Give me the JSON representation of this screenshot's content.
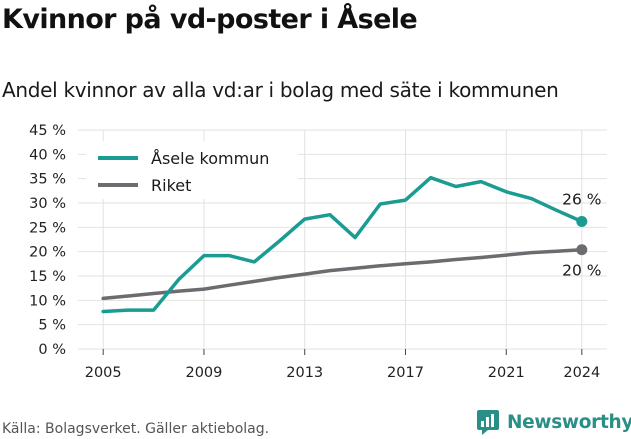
{
  "title": "Kvinnor på vd-poster i Åsele",
  "subtitle": "Andel kvinnor av alla vd:ar i bolag med säte i kommunen",
  "source": "Källa: Bolagsverket. Gäller aktiebolag.",
  "brand": {
    "name": "Newsworthy",
    "color": "#2a8f86"
  },
  "chart_data": {
    "type": "line",
    "x": [
      2005,
      2006,
      2007,
      2008,
      2009,
      2010,
      2011,
      2012,
      2013,
      2014,
      2015,
      2016,
      2017,
      2018,
      2019,
      2020,
      2021,
      2022,
      2023,
      2024
    ],
    "series": [
      {
        "name": "Åsele kommun",
        "color": "#1a9c93",
        "values": [
          7.7,
          8.0,
          8.0,
          14.3,
          19.2,
          19.2,
          17.9,
          22.2,
          26.7,
          27.6,
          22.9,
          29.8,
          30.6,
          35.2,
          33.4,
          34.4,
          32.3,
          30.9,
          28.5,
          26.2
        ],
        "end_label": "26 %"
      },
      {
        "name": "Riket",
        "color": "#6e6b70",
        "values": [
          10.4,
          10.9,
          11.4,
          11.9,
          12.3,
          13.1,
          13.9,
          14.7,
          15.4,
          16.1,
          16.6,
          17.1,
          17.5,
          17.9,
          18.4,
          18.8,
          19.3,
          19.8,
          20.1,
          20.4
        ],
        "end_label": "20 %"
      }
    ],
    "yticks": [
      "0 %",
      "5 %",
      "10 %",
      "15 %",
      "20 %",
      "25 %",
      "30 %",
      "35 %",
      "40 %",
      "45 %"
    ],
    "xticks": [
      "2005",
      "2009",
      "2013",
      "2017",
      "2021",
      "2024"
    ],
    "ylim": [
      0,
      45
    ],
    "xlim": [
      2004,
      2025
    ],
    "grid": true,
    "legend_position": "top-left"
  }
}
